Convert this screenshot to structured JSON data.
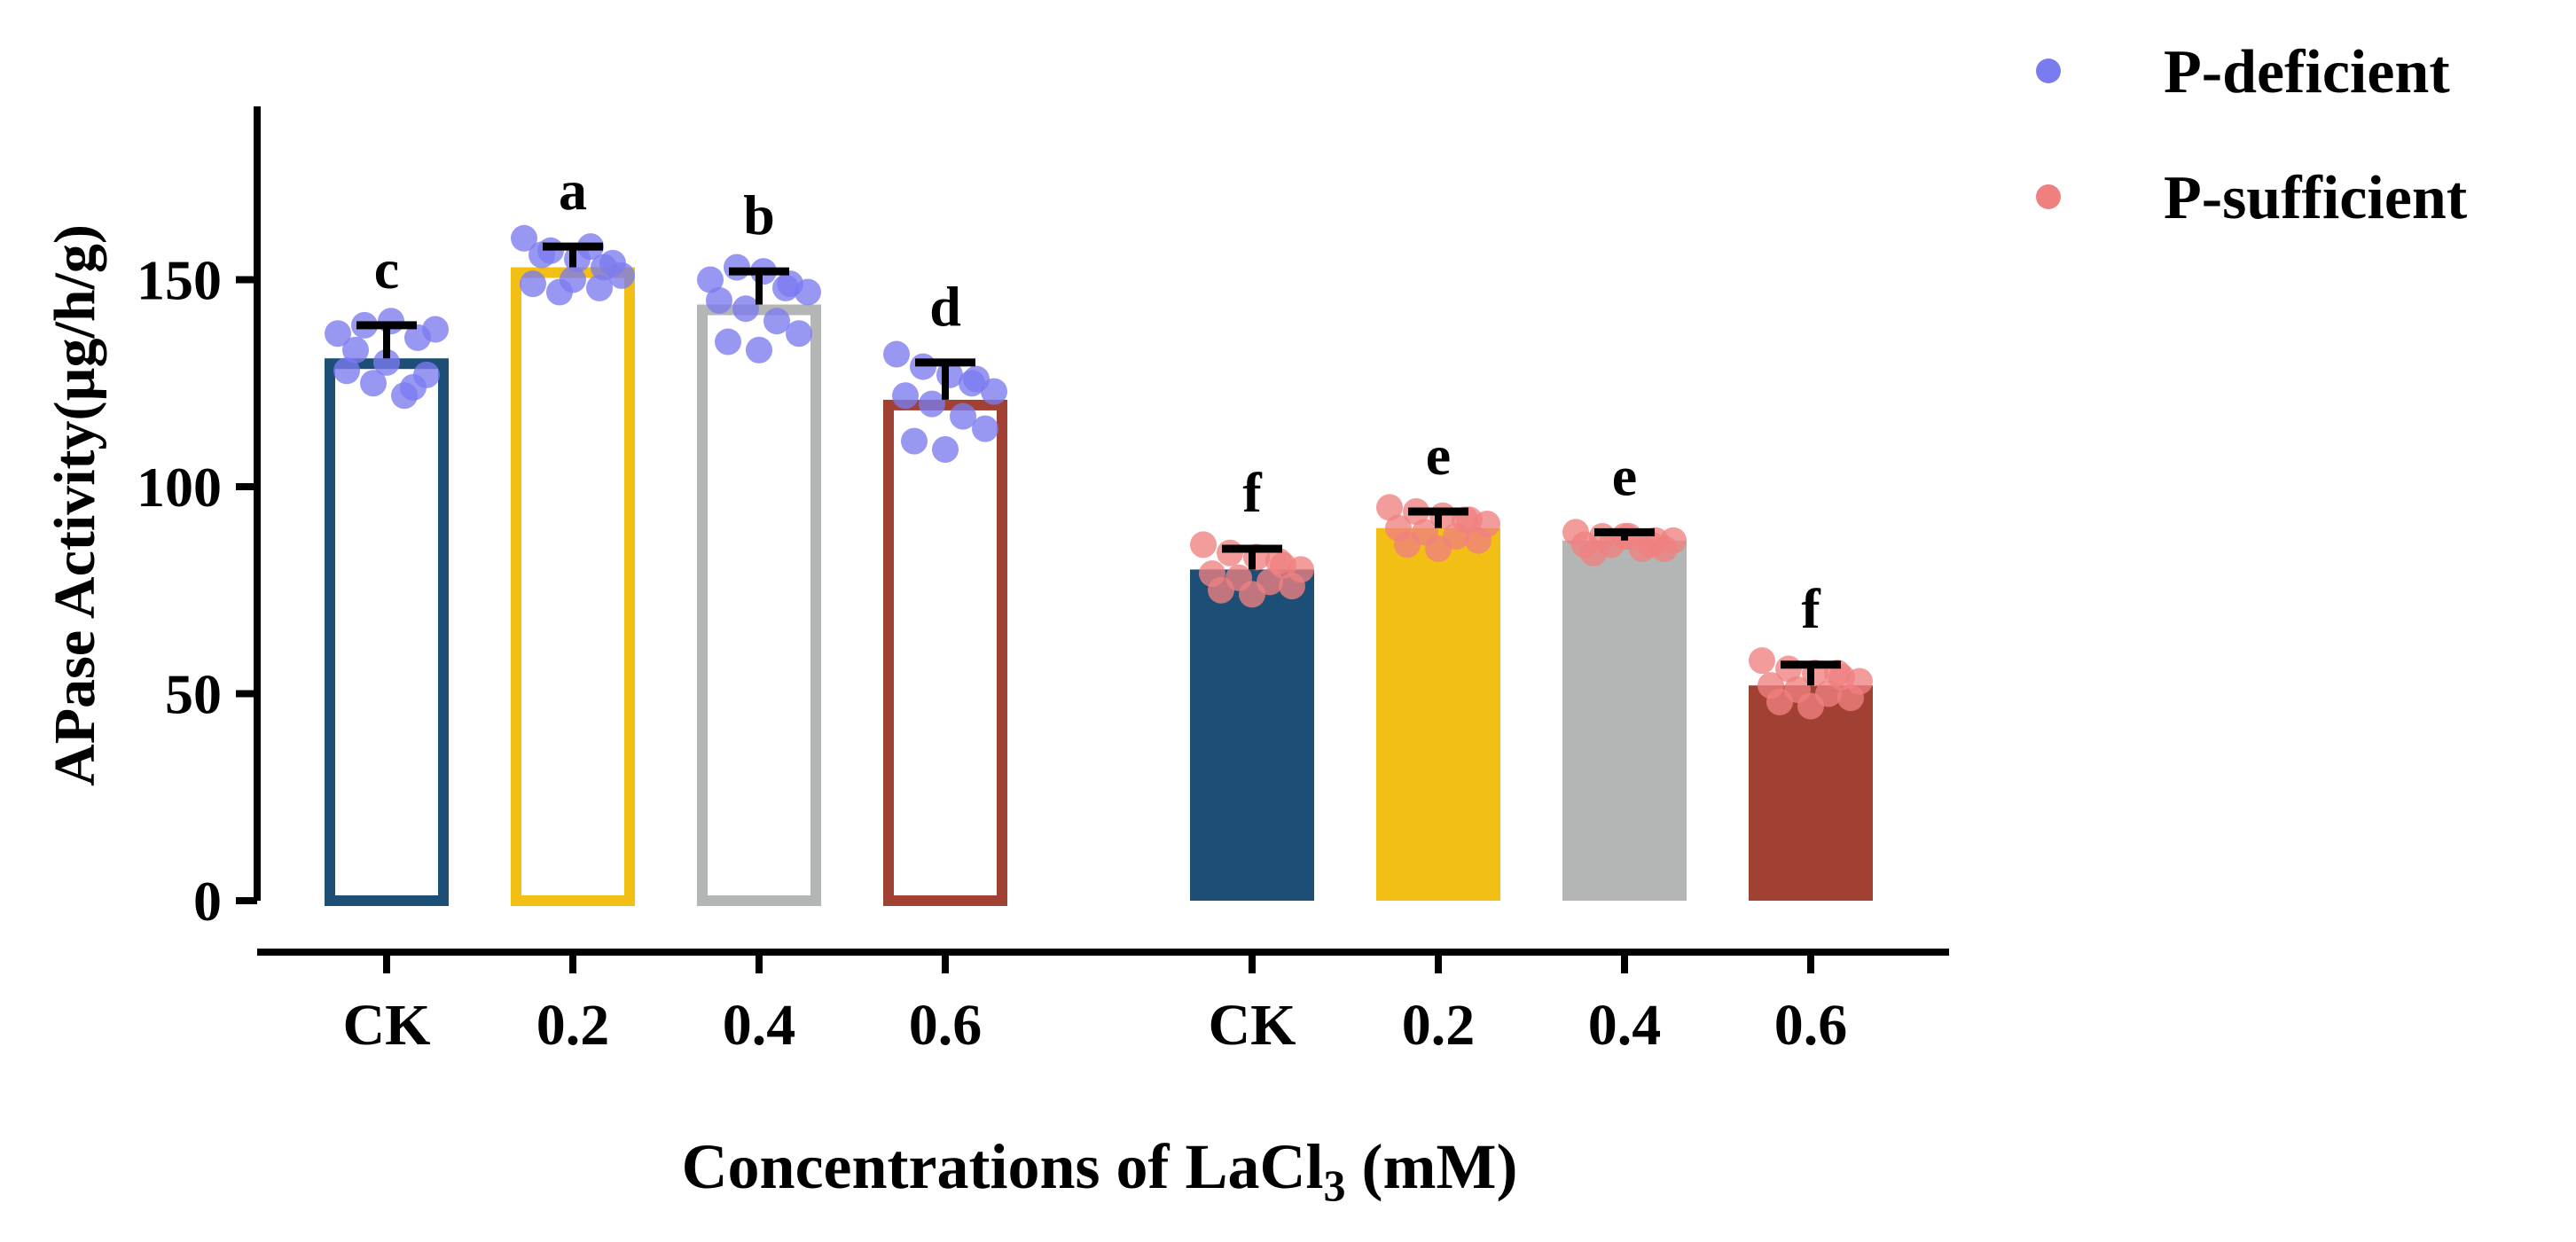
{
  "chart_data": {
    "type": "bar",
    "title": "",
    "ylabel": "APase Activity(µg/h/g)",
    "xlabel_main": "Concentrations of LaCl",
    "xlabel_sub": "3",
    "xlabel_unit": " (mM)",
    "ylim": [
      0,
      190
    ],
    "yticks": [
      0,
      50,
      100,
      150
    ],
    "ytick_labels": [
      "0",
      "50",
      "100",
      "150"
    ],
    "legend": [
      {
        "label": "P-deficient",
        "color": "#7b7bf0"
      },
      {
        "label": "P-sufficient",
        "color": "#f08080"
      }
    ],
    "legend_position": "top-right",
    "groups": [
      {
        "name": "P-deficient",
        "style": "outline",
        "dot_color": "#7b7bf0",
        "bars": [
          {
            "label": "CK",
            "value": 131,
            "error": 8,
            "letter": "c",
            "color": "#1d4e75",
            "points": [
              137,
              139,
              140,
              136,
              138,
              128,
              125,
              122,
              127,
              133,
              130,
              124
            ]
          },
          {
            "label": "0.2",
            "value": 153,
            "error": 5,
            "letter": "a",
            "color": "#f2c014",
            "points": [
              160,
              157,
              155,
              153,
              151,
              149,
              147,
              158,
              154,
              156,
              150,
              148
            ]
          },
          {
            "label": "0.4",
            "value": 144,
            "error": 8,
            "letter": "b",
            "color": "#b4b6b5",
            "points": [
              150,
              153,
              152,
              149,
              147,
              145,
              143,
              140,
              137,
              135,
              133,
              148
            ]
          },
          {
            "label": "0.6",
            "value": 121,
            "error": 9,
            "letter": "d",
            "color": "#a14133",
            "points": [
              132,
              129,
              127,
              126,
              123,
              122,
              120,
              117,
              114,
              111,
              109,
              125
            ]
          }
        ]
      },
      {
        "name": "P-sufficient",
        "style": "filled",
        "dot_color": "#f08080",
        "bars": [
          {
            "label": "CK",
            "value": 80,
            "error": 5,
            "letter": "f",
            "color": "#1d4e75",
            "points": [
              86,
              84,
              83,
              81,
              80,
              79,
              78,
              77,
              76,
              75,
              74,
              82
            ]
          },
          {
            "label": "0.2",
            "value": 90,
            "error": 4,
            "letter": "e",
            "color": "#f2c014",
            "points": [
              95,
              94,
              93,
              92,
              91,
              90,
              89,
              88,
              87,
              86,
              85,
              92
            ]
          },
          {
            "label": "0.4",
            "value": 87,
            "error": 2,
            "letter": "e",
            "color": "#b4b6b5",
            "points": [
              89,
              88,
              88,
              87,
              87,
              86,
              86,
              85,
              85,
              84,
              88,
              86
            ]
          },
          {
            "label": "0.6",
            "value": 52,
            "error": 5,
            "letter": "f",
            "color": "#a14133",
            "points": [
              58,
              56,
              55,
              54,
              53,
              52,
              51,
              50,
              49,
              48,
              47,
              55
            ]
          }
        ]
      }
    ]
  }
}
